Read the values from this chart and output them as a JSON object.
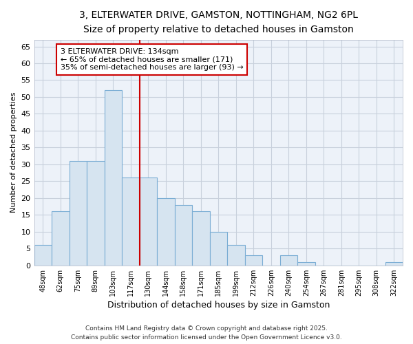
{
  "title": "3, ELTERWATER DRIVE, GAMSTON, NOTTINGHAM, NG2 6PL",
  "subtitle": "Size of property relative to detached houses in Gamston",
  "xlabel": "Distribution of detached houses by size in Gamston",
  "ylabel": "Number of detached properties",
  "categories": [
    "48sqm",
    "62sqm",
    "75sqm",
    "89sqm",
    "103sqm",
    "117sqm",
    "130sqm",
    "144sqm",
    "158sqm",
    "171sqm",
    "185sqm",
    "199sqm",
    "212sqm",
    "226sqm",
    "240sqm",
    "254sqm",
    "267sqm",
    "281sqm",
    "295sqm",
    "308sqm",
    "322sqm"
  ],
  "values": [
    6,
    16,
    31,
    31,
    52,
    26,
    26,
    20,
    18,
    16,
    10,
    6,
    3,
    0,
    3,
    1,
    0,
    0,
    0,
    0,
    1
  ],
  "bar_color": "#d6e4f0",
  "bar_edge_color": "#7aadd4",
  "axes_bg_color": "#edf2f9",
  "fig_bg_color": "#ffffff",
  "grid_color": "#c8d0dc",
  "vline_x": 5.5,
  "vline_color": "#cc0000",
  "annotation_text": "3 ELTERWATER DRIVE: 134sqm\n← 65% of detached houses are smaller (171)\n35% of semi-detached houses are larger (93) →",
  "annotation_box_facecolor": "#ffffff",
  "annotation_box_edgecolor": "#cc0000",
  "ylim": [
    0,
    67
  ],
  "yticks": [
    0,
    5,
    10,
    15,
    20,
    25,
    30,
    35,
    40,
    45,
    50,
    55,
    60,
    65
  ],
  "footer_line1": "Contains HM Land Registry data © Crown copyright and database right 2025.",
  "footer_line2": "Contains public sector information licensed under the Open Government Licence v3.0.",
  "title_fontsize": 10,
  "subtitle_fontsize": 9,
  "ylabel_fontsize": 8,
  "xlabel_fontsize": 9,
  "tick_fontsize": 8,
  "xtick_fontsize": 7,
  "footer_fontsize": 6.5,
  "annot_fontsize": 8
}
